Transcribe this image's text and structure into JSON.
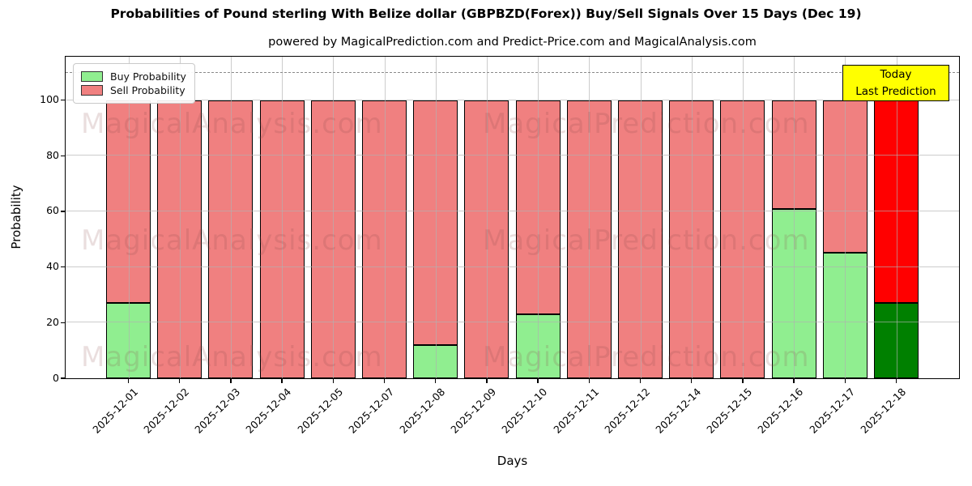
{
  "chart_data": {
    "type": "bar",
    "stacked": true,
    "title": "Probabilities of Pound sterling With Belize dollar (GBPBZD(Forex)) Buy/Sell Signals Over 15 Days (Dec 19)",
    "subtitle": "powered by MagicalPrediction.com and Predict-Price.com and MagicalAnalysis.com",
    "xlabel": "Days",
    "ylabel": "Probability",
    "categories": [
      "2025-12-01",
      "2025-12-02",
      "2025-12-03",
      "2025-12-04",
      "2025-12-05",
      "2025-12-07",
      "2025-12-08",
      "2025-12-09",
      "2025-12-10",
      "2025-12-11",
      "2025-12-12",
      "2025-12-14",
      "2025-12-15",
      "2025-12-16",
      "2025-12-17",
      "2025-12-18"
    ],
    "series": [
      {
        "name": "Buy Probability",
        "color": "#90EE90",
        "highlight_color": "#008000",
        "values": [
          27,
          0,
          0,
          0,
          0,
          0,
          12,
          0,
          23,
          0,
          0,
          0,
          0,
          61,
          45,
          27
        ]
      },
      {
        "name": "Sell Probability",
        "color": "#F08080",
        "highlight_color": "#FF0000",
        "values": [
          73,
          100,
          100,
          100,
          100,
          100,
          88,
          100,
          77,
          100,
          100,
          100,
          100,
          39,
          55,
          73
        ]
      }
    ],
    "highlight_index": 15,
    "yticks": [
      0,
      20,
      40,
      60,
      80,
      100
    ],
    "ylim": [
      0,
      115.6
    ],
    "dashed_line_y": 110,
    "grid": true,
    "legend_position": "upper-left",
    "bar_edge_color": "#000000",
    "annotation": {
      "line1": "Today",
      "line2": "Last Prediction",
      "bg_color": "#FFFF00"
    },
    "watermarks": {
      "left": "MagicalAnalysis.com",
      "right": "MagicalPrediction.com"
    }
  }
}
